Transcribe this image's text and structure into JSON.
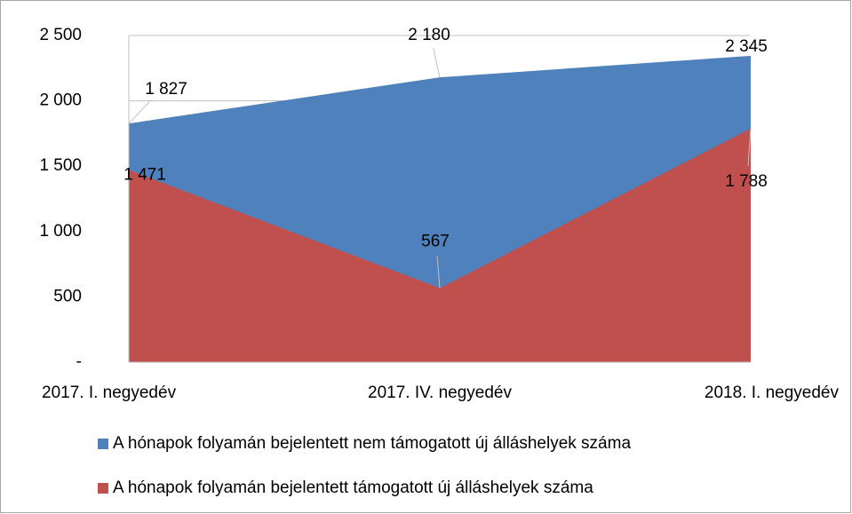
{
  "chart_data": {
    "type": "area",
    "categories": [
      "2017. I. negyedév",
      "2017. IV. negyedév",
      "2018. I. negyedév"
    ],
    "series": [
      {
        "name": "A hónapok folyamán bejelentett nem támogatott új álláshelyek száma",
        "color": "#4f81bd",
        "values": [
          1827,
          2180,
          2345
        ],
        "value_labels": [
          "1 827",
          "2 180",
          "2 345"
        ]
      },
      {
        "name": "A hónapok folyamán bejelentett támogatott új álláshelyek száma",
        "color": "#c0504d",
        "values": [
          1471,
          567,
          1788
        ],
        "value_labels": [
          "1 471",
          "567",
          "1 788"
        ]
      }
    ],
    "ylim": [
      0,
      2500
    ],
    "yticks": [
      {
        "value": 0,
        "label": "-"
      },
      500,
      {
        "value": 1000,
        "label": "1 000"
      },
      {
        "value": 1500,
        "label": "1 500"
      },
      {
        "value": 2000,
        "label": "2 000"
      },
      {
        "value": 2500,
        "label": "2 500"
      }
    ],
    "grid": true,
    "legend": "bottom"
  }
}
